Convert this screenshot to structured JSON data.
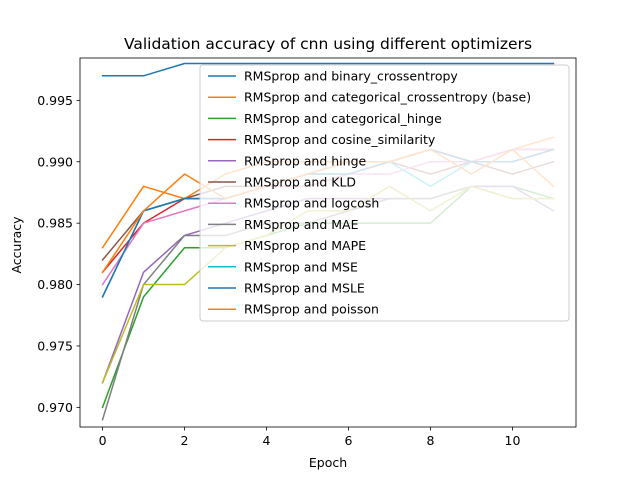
{
  "chart_data": {
    "type": "line",
    "title": "Validation accuracy of cnn using different optimizers",
    "xlabel": "Epoch",
    "ylabel": "Accuracy",
    "xlim": [
      -0.55,
      11.55
    ],
    "ylim": [
      0.9684,
      0.99845
    ],
    "xticks": [
      0,
      2,
      4,
      6,
      8,
      10
    ],
    "yticks": [
      0.97,
      0.975,
      0.98,
      0.985,
      0.99,
      0.995
    ],
    "grid": false,
    "legend_position": "upper right",
    "x": [
      0,
      1,
      2,
      3,
      4,
      5,
      6,
      7,
      8,
      9,
      10,
      11
    ],
    "series": [
      {
        "name": "RMSprop and binary_crossentropy",
        "color": "#1f77b4",
        "values": [
          0.997,
          0.997,
          0.998,
          0.998,
          0.998,
          0.998,
          0.998,
          0.998,
          0.998,
          0.998,
          0.998,
          0.998
        ]
      },
      {
        "name": "RMSprop and categorical_crossentropy (base)",
        "color": "#ff7f0e",
        "values": [
          0.983,
          0.988,
          0.987,
          0.989,
          0.99,
          0.99,
          0.99,
          0.99,
          0.991,
          0.99,
          0.991,
          0.992
        ]
      },
      {
        "name": "RMSprop and categorical_hinge",
        "color": "#2ca02c",
        "values": [
          0.97,
          0.979,
          0.983,
          0.983,
          0.984,
          0.985,
          0.985,
          0.985,
          0.985,
          0.988,
          0.988,
          0.987
        ]
      },
      {
        "name": "RMSprop and cosine_similarity",
        "color": "#d62728",
        "values": [
          0.981,
          0.985,
          0.987,
          0.987,
          0.988,
          0.989,
          0.99,
          0.99,
          0.991,
          0.99,
          0.991,
          0.991
        ]
      },
      {
        "name": "RMSprop and hinge",
        "color": "#9467bd",
        "values": [
          0.972,
          0.981,
          0.984,
          0.985,
          0.986,
          0.987,
          0.987,
          0.987,
          0.987,
          0.988,
          0.988,
          0.986
        ]
      },
      {
        "name": "RMSprop and KLD",
        "color": "#8c564b",
        "values": [
          0.982,
          0.986,
          0.987,
          0.988,
          0.988,
          0.988,
          0.989,
          0.99,
          0.989,
          0.99,
          0.989,
          0.99
        ]
      },
      {
        "name": "RMSprop and logcosh",
        "color": "#e377c2",
        "values": [
          0.98,
          0.985,
          0.986,
          0.987,
          0.988,
          0.988,
          0.989,
          0.989,
          0.99,
          0.99,
          0.991,
          0.991
        ]
      },
      {
        "name": "RMSprop and MAE",
        "color": "#7f7f7f",
        "values": [
          0.969,
          0.98,
          0.984,
          0.984,
          0.985,
          0.985,
          0.986,
          0.987,
          0.987,
          0.988,
          0.987,
          0.987
        ]
      },
      {
        "name": "RMSprop and MAPE",
        "color": "#bcbd22",
        "values": [
          0.972,
          0.98,
          0.98,
          0.983,
          0.984,
          0.986,
          0.986,
          0.988,
          0.986,
          0.988,
          0.987,
          0.987
        ]
      },
      {
        "name": "RMSprop and MSE",
        "color": "#17becf",
        "values": [
          0.979,
          0.986,
          0.987,
          0.987,
          0.988,
          0.989,
          0.989,
          0.99,
          0.988,
          0.99,
          0.99,
          0.991
        ]
      },
      {
        "name": "RMSprop and MSLE",
        "color": "#1f77b4",
        "values": [
          0.979,
          0.986,
          0.987,
          0.987,
          0.988,
          0.989,
          0.989,
          0.99,
          0.991,
          0.99,
          0.99,
          0.991
        ]
      },
      {
        "name": "RMSprop and poisson",
        "color": "#ff7f0e",
        "values": [
          0.981,
          0.986,
          0.989,
          0.987,
          0.988,
          0.989,
          0.99,
          0.99,
          0.991,
          0.989,
          0.991,
          0.988
        ]
      }
    ]
  }
}
